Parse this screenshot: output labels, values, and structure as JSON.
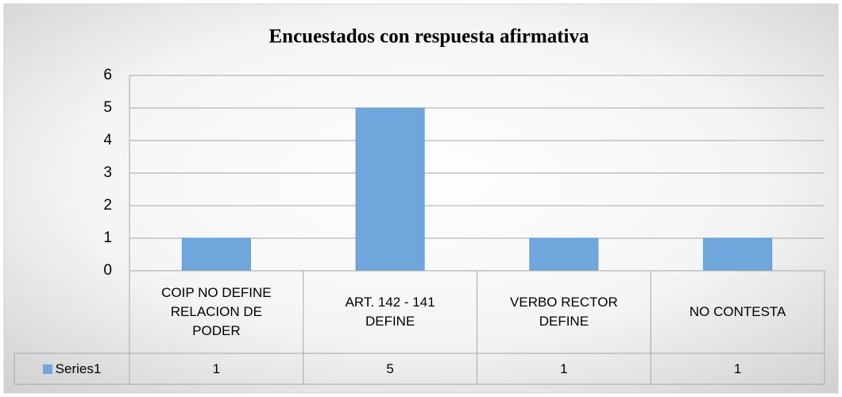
{
  "chart_data": {
    "type": "bar",
    "title": "Encuestados con respuesta afirmativa",
    "categories": [
      "COIP NO DEFINE RELACION DE PODER",
      "ART. 142 - 141 DEFINE",
      "VERBO RECTOR DEFINE",
      "NO CONTESTA"
    ],
    "series": [
      {
        "name": "Series1",
        "color": "#6fa6dc",
        "values": [
          1,
          5,
          1,
          1
        ]
      }
    ],
    "ylim": [
      0,
      6
    ],
    "yticks": [
      0,
      1,
      2,
      3,
      4,
      5,
      6
    ],
    "grid": true,
    "data_table": true
  }
}
